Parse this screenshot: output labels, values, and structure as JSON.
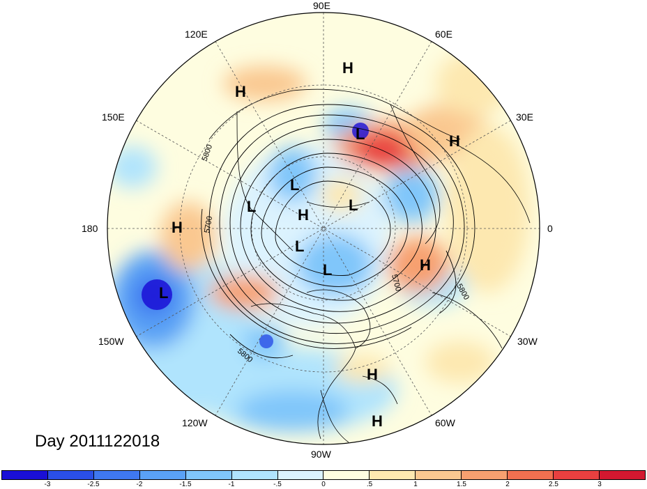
{
  "map": {
    "day_label": "Day 2011122018",
    "longitude_labels": {
      "lon_90e": "90E",
      "lon_120e": "120E",
      "lon_60e": "60E",
      "lon_150e": "150E",
      "lon_30e": "30E",
      "lon_180": "180",
      "lon_0": "0",
      "lon_150w": "150W",
      "lon_30w": "30W",
      "lon_120w": "120W",
      "lon_60w": "60W",
      "lon_90w": "90W"
    },
    "contour_labels": [
      "5800",
      "5700",
      "5700",
      "5800",
      "5800"
    ],
    "pressure_centers": [
      {
        "letter": "H"
      },
      {
        "letter": "H"
      },
      {
        "letter": "L"
      },
      {
        "letter": "H"
      },
      {
        "letter": "L"
      },
      {
        "letter": "L"
      },
      {
        "letter": "H"
      },
      {
        "letter": "L"
      },
      {
        "letter": "H"
      },
      {
        "letter": "L"
      },
      {
        "letter": "H"
      },
      {
        "letter": "L"
      },
      {
        "letter": "L"
      },
      {
        "letter": "H"
      },
      {
        "letter": "H"
      }
    ],
    "colorbar": {
      "colors": [
        "#1a0fd6",
        "#2a4fe6",
        "#3f78f0",
        "#5aa2f5",
        "#80c6fa",
        "#b0e4fd",
        "#dcf3fe",
        "#fefde0",
        "#fde8b0",
        "#fac890",
        "#f7a070",
        "#f27050",
        "#e84040",
        "#d41830"
      ],
      "ticks": [
        "-3",
        "-2.5",
        "-2",
        "-1.5",
        "-1",
        "-.5",
        "0",
        ".5",
        "1",
        "1.5",
        "2",
        "2.5",
        "3"
      ]
    }
  }
}
